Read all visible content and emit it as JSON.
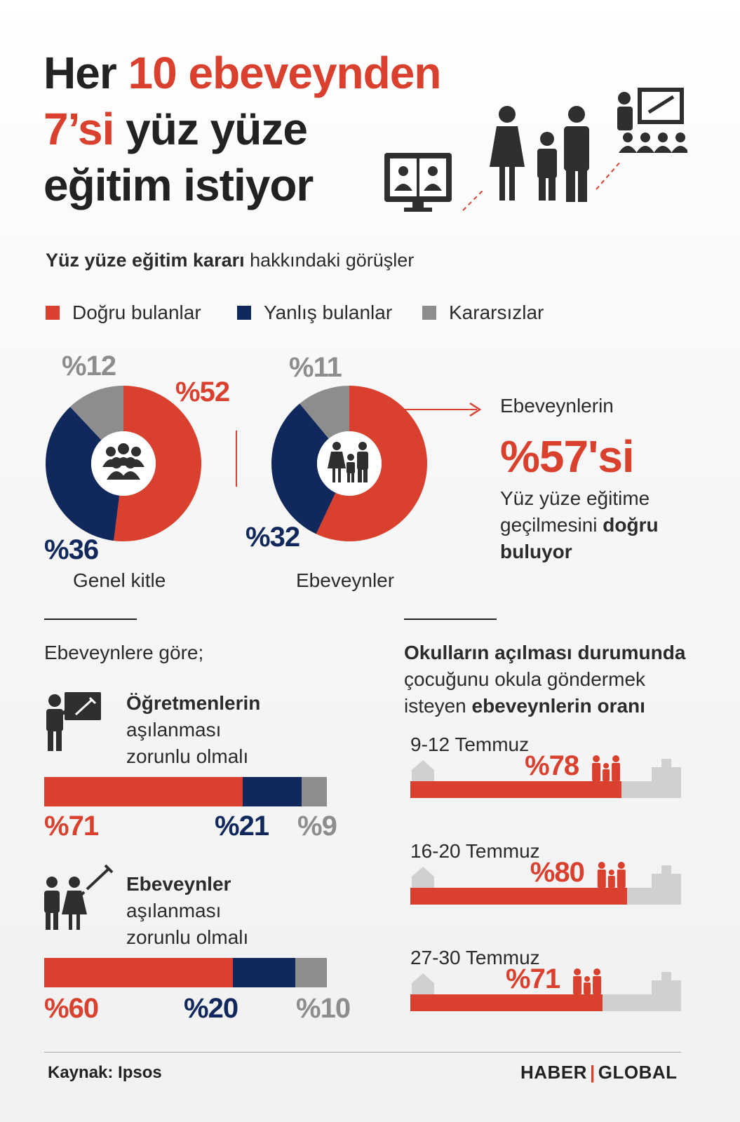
{
  "title": {
    "line1_a": "Her ",
    "line1_b": "10 ebeveynden",
    "line2_a": "7’si",
    "line2_b": " yüz yüze",
    "line3": "eğitim istiyor"
  },
  "subtitle": {
    "bold": "Yüz yüze eğitim kararı",
    "rest": " hakkındaki görüşler"
  },
  "legend": [
    {
      "label": "Doğru bulanlar",
      "color": "#d9412e"
    },
    {
      "label": "Yanlış bulanlar",
      "color": "#10285c"
    },
    {
      "label": "Kararsızlar",
      "color": "#8d8d8d"
    }
  ],
  "colors": {
    "red": "#d9412e",
    "navy": "#10285c",
    "grey": "#8d8d8d",
    "light_grey": "#d0d0d0"
  },
  "donuts": {
    "general": {
      "label": "Genel kitle",
      "p_red": "%52",
      "p_navy": "%36",
      "p_grey": "%12",
      "icon": "group-icon"
    },
    "parents": {
      "label": "Ebeveynler",
      "p_red": "",
      "p_navy": "%32",
      "p_grey": "%11",
      "icon": "family-icon"
    }
  },
  "callout": {
    "line1": "Ebeveynlerin",
    "big": "%57'si",
    "line2": "Yüz yüze eğitime",
    "line3_a": "geçilmesini ",
    "line3_b": "doğru",
    "line4": "buluyor"
  },
  "left_section": {
    "heading": "Ebeveynlere göre;",
    "items": [
      {
        "bold": "Öğretmenlerin",
        "l2": "aşılanması",
        "l3": "zorunlu olmalı",
        "icon": "teacher-vaccine-icon",
        "p_red": "%71",
        "p_navy": "%21",
        "p_grey": "%9"
      },
      {
        "bold": "Ebeveynler",
        "l2": "aşılanması",
        "l3": "zorunlu olmalı",
        "icon": "parents-vaccine-icon",
        "p_red": "%60",
        "p_navy": "%20",
        "p_grey": "%10"
      }
    ]
  },
  "right_section": {
    "h1": "Okulların açılması durumunda",
    "h2": "çocuğunu okula göndermek",
    "h3_a": "isteyen ",
    "h3_b": "ebeveynlerin oranı",
    "rows": [
      {
        "date": "9-12 Temmuz",
        "pct": "%78"
      },
      {
        "date": "16-20 Temmuz",
        "pct": "%80"
      },
      {
        "date": "27-30 Temmuz",
        "pct": "%71"
      }
    ]
  },
  "chart_data": [
    {
      "type": "pie",
      "title": "Genel kitle",
      "categories": [
        "Doğru bulanlar",
        "Yanlış bulanlar",
        "Kararsızlar"
      ],
      "values": [
        52,
        36,
        12
      ]
    },
    {
      "type": "pie",
      "title": "Ebeveynler",
      "categories": [
        "Doğru bulanlar",
        "Yanlış bulanlar",
        "Kararsızlar"
      ],
      "values": [
        57,
        32,
        11
      ]
    },
    {
      "type": "bar",
      "title": "Öğretmenlerin aşılanması zorunlu olmalı",
      "categories": [
        "Doğru bulanlar",
        "Yanlış bulanlar",
        "Kararsızlar"
      ],
      "values": [
        71,
        21,
        9
      ]
    },
    {
      "type": "bar",
      "title": "Ebeveynler aşılanması zorunlu olmalı",
      "categories": [
        "Doğru bulanlar",
        "Yanlış bulanlar",
        "Kararsızlar"
      ],
      "values": [
        60,
        20,
        10
      ]
    },
    {
      "type": "bar",
      "title": "Okulların açılması durumunda çocuğunu okula göndermek isteyen ebeveynlerin oranı",
      "categories": [
        "9-12 Temmuz",
        "16-20 Temmuz",
        "27-30 Temmuz"
      ],
      "values": [
        78,
        80,
        71
      ],
      "ylim": [
        0,
        100
      ]
    }
  ],
  "footer": {
    "source": "Kaynak: Ipsos",
    "brand_a": "HABER",
    "brand_b": "GLOBAL"
  }
}
